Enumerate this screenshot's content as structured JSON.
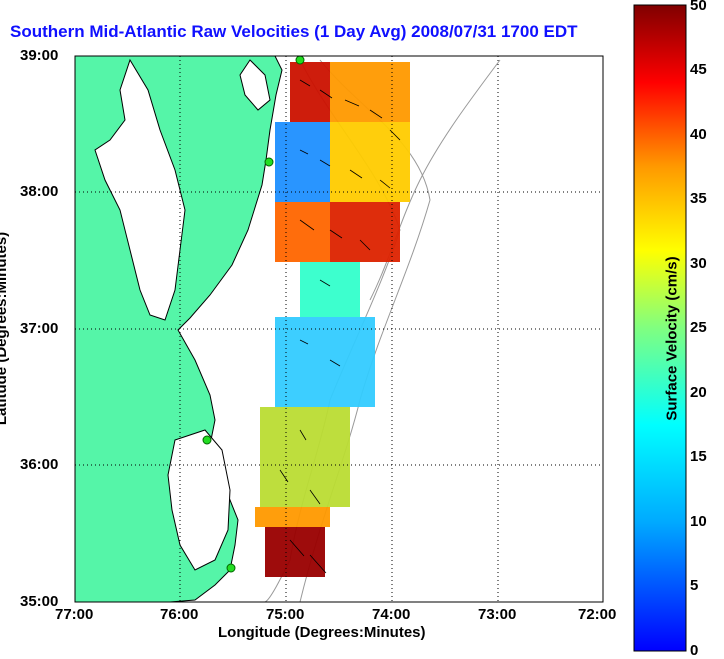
{
  "title": "Southern Mid-Atlantic Raw Velocities (1 Day Avg) 2008/07/31 1700 EDT",
  "map": {
    "xlabel": "Longitude (Degrees:Minutes)",
    "ylabel": "Latitude (Degrees:Minutes)",
    "xticks": [
      "77:00",
      "76:00",
      "75:00",
      "74:00",
      "73:00",
      "72:00"
    ],
    "yticks": [
      "39:00",
      "38:00",
      "37:00",
      "36:00",
      "35:00"
    ],
    "colors": {
      "land": "#55f5a8",
      "water": "#ffffff",
      "coast": "#000000",
      "bathymetry": "#999999",
      "station": "#22dd22"
    }
  },
  "colorbar": {
    "label": "Surface Velocity (cm/s)",
    "ticks": [
      "0",
      "5",
      "10",
      "15",
      "20",
      "25",
      "30",
      "35",
      "40",
      "45",
      "50"
    ],
    "range": [
      0,
      50
    ]
  }
}
